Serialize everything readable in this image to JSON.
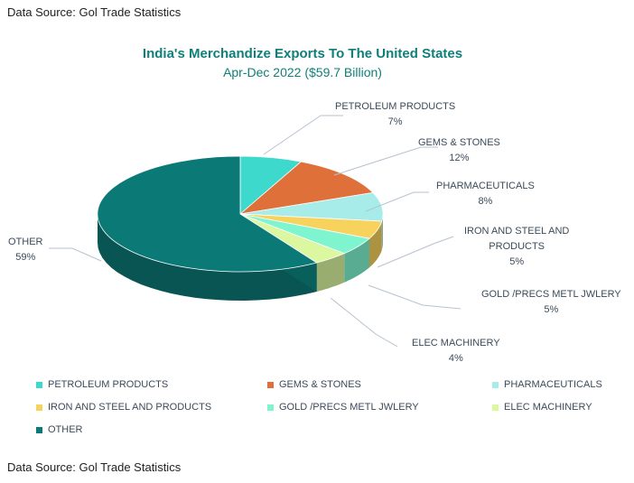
{
  "source_top": "Data Source: Gol Trade Statistics",
  "source_bottom": "Data Source: Gol Trade Statistics",
  "chart_data": {
    "type": "pie",
    "title": "India's Merchandize Exports To The United States",
    "subtitle": "Apr-Dec 2022 ($59.7 Billion)",
    "slices": [
      {
        "label": "PETROLEUM PRODUCTS",
        "value": 7,
        "value_label": "7%",
        "color": "#3dd9cd"
      },
      {
        "label": "GEMS & STONES",
        "value": 12,
        "value_label": "12%",
        "color": "#e0703a"
      },
      {
        "label": "PHARMACEUTICALS",
        "value": 8,
        "value_label": "8%",
        "color": "#a8ecea"
      },
      {
        "label": "IRON AND STEEL AND PRODUCTS",
        "value": 5,
        "value_label": "5%",
        "color": "#f7d25c"
      },
      {
        "label": "GOLD /PRECS METL JWLERY",
        "value": 5,
        "value_label": "5%",
        "color": "#7ff5cf"
      },
      {
        "label": "ELEC MACHINERY",
        "value": 4,
        "value_label": "4%",
        "color": "#dbf7a0"
      },
      {
        "label": "OTHER",
        "value": 59,
        "value_label": "59%",
        "color": "#0b7a76"
      }
    ],
    "callouts": [
      {
        "name_lines": [
          "PETROLEUM PRODUCTS"
        ]
      },
      {
        "name_lines": [
          "GEMS & STONES"
        ]
      },
      {
        "name_lines": [
          "PHARMACEUTICALS"
        ]
      },
      {
        "name_lines": [
          "IRON AND STEEL AND",
          "PRODUCTS"
        ]
      },
      {
        "name_lines": [
          "GOLD /PRECS METL JWLERY"
        ]
      },
      {
        "name_lines": [
          "ELEC MACHINERY"
        ]
      },
      {
        "name_lines": [
          "OTHER"
        ]
      }
    ],
    "legend_position": "bottom"
  }
}
